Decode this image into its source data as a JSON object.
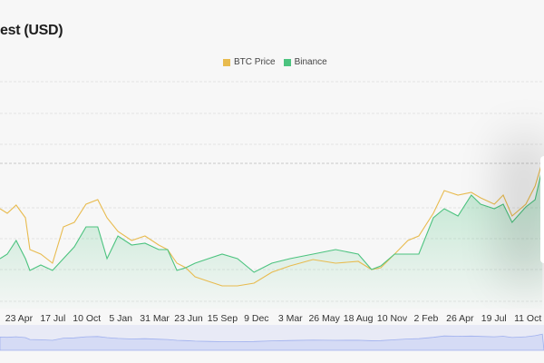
{
  "header": {
    "title": "est (USD)"
  },
  "legend": [
    {
      "label": "BTC Price",
      "color": "#e8bb4f"
    },
    {
      "label": "Binance",
      "color": "#4cc37f"
    }
  ],
  "chart_data": {
    "type": "line",
    "title": "est (USD)",
    "xlabel": "",
    "ylabel": "",
    "x": [
      0,
      18,
      40,
      63,
      74,
      101,
      130,
      157,
      184,
      213,
      242,
      265,
      292,
      326,
      359,
      393,
      415,
      438,
      460,
      483,
      516,
      550,
      588,
      629,
      673,
      718,
      775,
      831,
      887,
      920,
      943,
      977,
      1010,
      1037,
      1073,
      1100,
      1134,
      1167,
      1190,
      1224,
      1246,
      1268,
      1302,
      1325,
      1343
    ],
    "xlim": [
      0,
      1347
    ],
    "ylim": [
      0,
      127.5
    ],
    "x_ticks": [
      {
        "label": "23 Apr",
        "x": 47
      },
      {
        "label": "17 Jul",
        "x": 131
      },
      {
        "label": "10 Oct",
        "x": 215
      },
      {
        "label": "5 Jan",
        "x": 299
      },
      {
        "label": "31 Mar",
        "x": 383
      },
      {
        "label": "23 Jun",
        "x": 467
      },
      {
        "label": "15 Sep",
        "x": 551
      },
      {
        "label": "9 Dec",
        "x": 635
      },
      {
        "label": "3 Mar",
        "x": 719
      },
      {
        "label": "26 May",
        "x": 803
      },
      {
        "label": "18 Aug",
        "x": 887
      },
      {
        "label": "10 Nov",
        "x": 971
      },
      {
        "label": "2 Feb",
        "x": 1055
      },
      {
        "label": "26 Apr",
        "x": 1139
      },
      {
        "label": "19 Jul",
        "x": 1223
      },
      {
        "label": "11 Oct",
        "x": 1307
      }
    ],
    "grid": true,
    "legend_position": "top-center",
    "series": [
      {
        "name": "BTC Price",
        "color": "#e8bb4f",
        "values": [
          55,
          52.5,
          57,
          50,
          32.5,
          30,
          25,
          45,
          47.5,
          57.5,
          60,
          50,
          42.5,
          37.5,
          40,
          35,
          32.5,
          25,
          22.5,
          17.5,
          15,
          12.5,
          12.5,
          14,
          20,
          23.5,
          27,
          25,
          26,
          21.5,
          22.5,
          30,
          37.5,
          40,
          52.5,
          65,
          62.5,
          64,
          61,
          57.5,
          62.5,
          51,
          57.5,
          67.5,
          81
        ]
      },
      {
        "name": "Binance",
        "color": "#4cc37f",
        "values": [
          27.5,
          30,
          37.5,
          27.5,
          21,
          24,
          21,
          27.5,
          34,
          45,
          45,
          27.5,
          40,
          35,
          36,
          32.5,
          32.5,
          21,
          22.5,
          25,
          27.5,
          30,
          27.5,
          20,
          25,
          27.5,
          30,
          32.5,
          30,
          21.5,
          23.5,
          30,
          30,
          30,
          50,
          55,
          51,
          62.5,
          57.5,
          55,
          57.5,
          47.5,
          56,
          60,
          77.5
        ]
      }
    ]
  }
}
